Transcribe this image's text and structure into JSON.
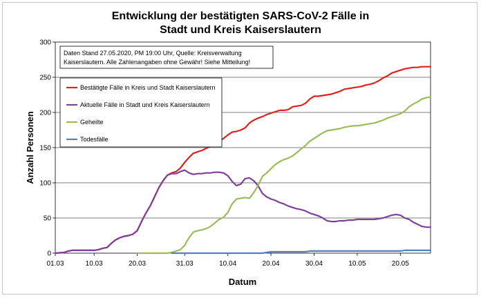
{
  "chart_data": {
    "type": "line",
    "title_lines": [
      "Entwicklung der bestätigten SARS-CoV-2 Fälle in",
      "Stadt und Kreis Kaiserslautern"
    ],
    "xlabel": "Datum",
    "ylabel": "Anzahl Personen",
    "ylim": [
      0,
      300
    ],
    "yticks": [
      0,
      50,
      100,
      150,
      200,
      250,
      300
    ],
    "x_start": "01.03",
    "x_end": "27.05",
    "xticks": [
      {
        "label": "01.03",
        "day": 0
      },
      {
        "label": "10.03",
        "day": 9
      },
      {
        "label": "20.03",
        "day": 19
      },
      {
        "label": "31.03",
        "day": 30
      },
      {
        "label": "10.04",
        "day": 40
      },
      {
        "label": "20.04",
        "day": 50
      },
      {
        "label": "30.04",
        "day": 60
      },
      {
        "label": "10.05",
        "day": 70
      },
      {
        "label": "20.05",
        "day": 80
      }
    ],
    "grid": "horizontal",
    "annotation_lines": [
      "Daten Stand 27.05.2020, PM 19:00 Uhr, Quelle: Kreisverwaltung",
      "Kaiserslautern. Alle Zahlenangaben ohne Gewähr! Siehe Mitteilung!"
    ],
    "legend_placement": "upper-left",
    "series": [
      {
        "name": "Bestätigte Fälle in Kreis und Stadt Kaiserslautern",
        "color": "#e0201b",
        "x": [
          0,
          2,
          3,
          4,
          5,
          6,
          7,
          8,
          9,
          10,
          11,
          12,
          13,
          14,
          15,
          16,
          17,
          18,
          19,
          20,
          21,
          22,
          23,
          24,
          25,
          26,
          27,
          28,
          29,
          30,
          31,
          32,
          33,
          34,
          35,
          36,
          37,
          38,
          39,
          40,
          41,
          42,
          43,
          44,
          45,
          46,
          47,
          48,
          49,
          50,
          51,
          52,
          53,
          54,
          55,
          56,
          57,
          58,
          59,
          60,
          61,
          62,
          63,
          64,
          65,
          66,
          67,
          68,
          69,
          70,
          71,
          72,
          73,
          74,
          75,
          76,
          77,
          78,
          79,
          80,
          81,
          82,
          83,
          84,
          85,
          86,
          87
        ],
        "y": [
          0,
          1,
          3,
          4,
          4,
          4,
          4,
          4,
          4,
          5,
          7,
          8,
          14,
          19,
          22,
          24,
          25,
          27,
          32,
          45,
          57,
          67,
          80,
          93,
          103,
          111,
          114,
          116,
          121,
          129,
          136,
          142,
          144,
          146,
          149,
          152,
          155,
          159,
          163,
          168,
          172,
          173,
          175,
          178,
          185,
          189,
          192,
          194,
          197,
          199,
          201,
          203,
          203,
          204,
          208,
          209,
          210,
          213,
          219,
          223,
          223,
          224,
          225,
          226,
          228,
          230,
          233,
          234,
          235,
          236,
          237,
          239,
          240,
          242,
          245,
          249,
          252,
          256,
          258,
          260,
          262,
          263,
          264,
          264,
          265,
          265,
          265
        ]
      },
      {
        "name": "Aktuelle Fälle in Stadt und Kreis Kaiserslautern",
        "color": "#7e3f98",
        "x": [
          0,
          2,
          3,
          4,
          5,
          6,
          7,
          8,
          9,
          10,
          11,
          12,
          13,
          14,
          15,
          16,
          17,
          18,
          19,
          20,
          21,
          22,
          23,
          24,
          25,
          26,
          27,
          28,
          29,
          30,
          31,
          32,
          33,
          34,
          35,
          36,
          37,
          38,
          39,
          40,
          41,
          42,
          43,
          44,
          45,
          46,
          47,
          48,
          49,
          50,
          51,
          52,
          53,
          54,
          55,
          56,
          57,
          58,
          59,
          60,
          61,
          62,
          63,
          64,
          65,
          66,
          67,
          68,
          69,
          70,
          71,
          72,
          73,
          74,
          75,
          76,
          77,
          78,
          79,
          80,
          81,
          82,
          83,
          84,
          85,
          86,
          87
        ],
        "y": [
          0,
          1,
          3,
          4,
          4,
          4,
          4,
          4,
          4,
          5,
          7,
          8,
          14,
          19,
          22,
          24,
          25,
          27,
          32,
          45,
          57,
          67,
          80,
          93,
          103,
          111,
          113,
          113,
          116,
          118,
          114,
          112,
          113,
          113,
          114,
          114,
          115,
          115,
          114,
          110,
          102,
          96,
          98,
          106,
          107,
          103,
          96,
          85,
          80,
          77,
          75,
          72,
          70,
          67,
          65,
          63,
          62,
          60,
          57,
          55,
          53,
          50,
          46,
          45,
          45,
          46,
          46,
          47,
          47,
          48,
          48,
          48,
          48,
          48,
          49,
          50,
          52,
          54,
          55,
          54,
          50,
          48,
          44,
          41,
          38,
          37,
          37
        ]
      },
      {
        "name": "Geheilte",
        "color": "#9bbb59",
        "x": [
          19,
          20,
          21,
          22,
          23,
          24,
          25,
          26,
          27,
          28,
          29,
          30,
          31,
          32,
          33,
          34,
          35,
          36,
          37,
          38,
          39,
          40,
          41,
          42,
          43,
          44,
          45,
          46,
          47,
          48,
          49,
          50,
          51,
          52,
          53,
          54,
          55,
          56,
          57,
          58,
          59,
          60,
          61,
          62,
          63,
          64,
          65,
          66,
          67,
          68,
          69,
          70,
          71,
          72,
          73,
          74,
          75,
          76,
          77,
          78,
          79,
          80,
          81,
          82,
          83,
          84,
          85,
          86,
          87
        ],
        "y": [
          0,
          0,
          0,
          0,
          0,
          0,
          0,
          0,
          1,
          3,
          5,
          11,
          22,
          30,
          32,
          33,
          35,
          38,
          43,
          48,
          51,
          58,
          70,
          77,
          78,
          79,
          78,
          86,
          96,
          109,
          114,
          120,
          126,
          130,
          133,
          135,
          138,
          143,
          148,
          153,
          159,
          163,
          167,
          171,
          174,
          175,
          176,
          177,
          179,
          180,
          181,
          181,
          182,
          183,
          184,
          185,
          187,
          189,
          192,
          194,
          196,
          198,
          202,
          208,
          212,
          215,
          219,
          221,
          222
        ]
      },
      {
        "name": "Todesfälle",
        "color": "#4f81bd",
        "x": [
          27,
          28,
          29,
          30,
          31,
          32,
          33,
          34,
          35,
          36,
          37,
          38,
          39,
          40,
          41,
          42,
          43,
          44,
          45,
          46,
          47,
          48,
          49,
          50,
          51,
          52,
          53,
          54,
          55,
          56,
          57,
          58,
          59,
          60,
          61,
          62,
          63,
          64,
          65,
          66,
          67,
          68,
          69,
          70,
          71,
          72,
          73,
          74,
          75,
          76,
          77,
          78,
          79,
          80,
          81,
          82,
          83,
          84,
          85,
          86,
          87
        ],
        "y": [
          0,
          0,
          0,
          0,
          0,
          0,
          0,
          0,
          0,
          0,
          0,
          0,
          0,
          0,
          0,
          0,
          0,
          0,
          0,
          0,
          0,
          0,
          1,
          2,
          2,
          2,
          2,
          2,
          2,
          2,
          2,
          2,
          3,
          3,
          3,
          3,
          3,
          3,
          3,
          3,
          3,
          3,
          3,
          3,
          3,
          3,
          3,
          3,
          3,
          3,
          3,
          3,
          3,
          3,
          4,
          4,
          4,
          4,
          4,
          4,
          4
        ]
      }
    ]
  }
}
